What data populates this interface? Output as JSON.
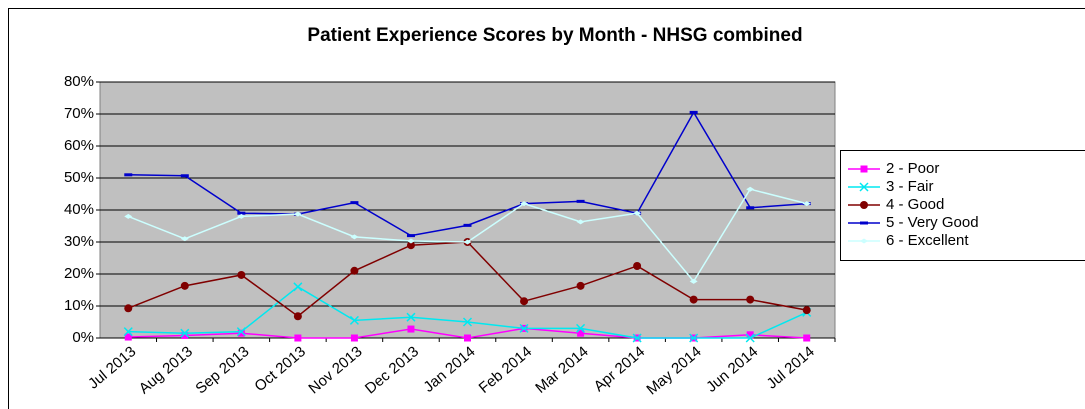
{
  "chart_data": {
    "type": "line",
    "title": "Patient Experience Scores by Month - NHSG combined",
    "categories": [
      "Jul 2013",
      "Aug 2013",
      "Sep 2013",
      "Oct 2013",
      "Nov 2013",
      "Dec 2013",
      "Jan 2014",
      "Feb 2014",
      "Mar 2014",
      "Apr 2014",
      "May 2014",
      "Jun 2014",
      "Jul 2014"
    ],
    "series": [
      {
        "name": "2 - Poor",
        "color": "#ff00ff",
        "marker": "square",
        "values": [
          0.3,
          0.8,
          1.5,
          0,
          0,
          2.8,
          0,
          3,
          1.5,
          0,
          0,
          1,
          0
        ]
      },
      {
        "name": "3 - Fair",
        "color": "#00e8f0",
        "marker": "x",
        "values": [
          2,
          1.5,
          2,
          16,
          5.5,
          6.5,
          5,
          3,
          3,
          0,
          0,
          0,
          8
        ]
      },
      {
        "name": "4 - Good",
        "color": "#800000",
        "marker": "circle",
        "values": [
          9.3,
          16.3,
          19.7,
          6.8,
          21,
          29,
          30,
          11.5,
          16.3,
          22.5,
          12,
          12,
          8.7
        ]
      },
      {
        "name": "5 - Very Good",
        "color": "#0000cc",
        "marker": "dash",
        "values": [
          51,
          50.7,
          39,
          38.7,
          42.3,
          32,
          35.2,
          42,
          42.7,
          39,
          70.5,
          40.7,
          42
        ]
      },
      {
        "name": "6 - Excellent",
        "color": "#ccffff",
        "marker": "diamond",
        "values": [
          38,
          31,
          38,
          38.7,
          31.6,
          30.3,
          30,
          42,
          36.3,
          39,
          17.7,
          46.5,
          42
        ]
      }
    ],
    "ylim": [
      0,
      80
    ],
    "yticks": [
      {
        "value": 0,
        "label": "0%"
      },
      {
        "value": 10,
        "label": "10%"
      },
      {
        "value": 20,
        "label": "20%"
      },
      {
        "value": 30,
        "label": "30%"
      },
      {
        "value": 40,
        "label": "40%"
      },
      {
        "value": 50,
        "label": "50%"
      },
      {
        "value": 60,
        "label": "60%"
      },
      {
        "value": 70,
        "label": "70%"
      },
      {
        "value": 80,
        "label": "80%"
      }
    ],
    "grid": true,
    "legend": "right",
    "plot_color": "#c0c0c0"
  }
}
